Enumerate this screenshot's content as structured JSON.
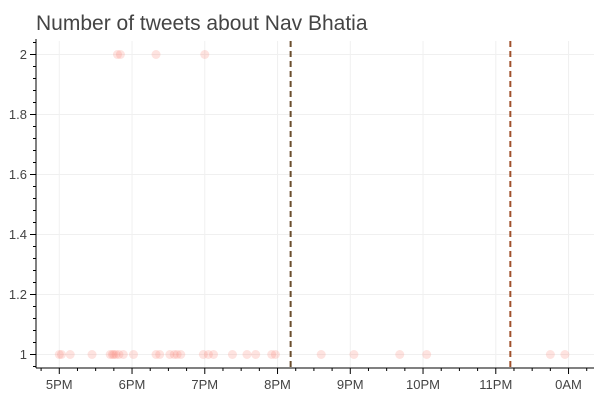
{
  "chart_data": {
    "type": "scatter",
    "title": "Number of tweets about Nav Bhatia",
    "xlabel": "",
    "ylabel": "",
    "x_unit": "hours after 5PM",
    "xlim": [
      -0.32,
      7.35
    ],
    "ylim": [
      0.955,
      2.045
    ],
    "x_ticks": [
      {
        "value": 0,
        "label": "5PM"
      },
      {
        "value": 1,
        "label": "6PM"
      },
      {
        "value": 2,
        "label": "7PM"
      },
      {
        "value": 3,
        "label": "8PM"
      },
      {
        "value": 4,
        "label": "9PM"
      },
      {
        "value": 5,
        "label": "10PM"
      },
      {
        "value": 6,
        "label": "11PM"
      },
      {
        "value": 7,
        "label": "0AM"
      }
    ],
    "y_ticks": [
      {
        "value": 1,
        "label": "1"
      },
      {
        "value": 1.2,
        "label": "1.2"
      },
      {
        "value": 1.4,
        "label": "1.4"
      },
      {
        "value": 1.6,
        "label": "1.6"
      },
      {
        "value": 1.8,
        "label": "1.8"
      },
      {
        "value": 2,
        "label": "2"
      }
    ],
    "grid": true,
    "point_color": "#fa8072",
    "point_alpha": 0.22,
    "series": [
      {
        "x": [
          0.0,
          0.03,
          0.15,
          0.45,
          0.7,
          0.73,
          0.75,
          0.78,
          0.82,
          0.88,
          1.02,
          1.33,
          1.38,
          1.52,
          1.58,
          1.62,
          1.67,
          1.98,
          2.05,
          2.12,
          2.38,
          2.58,
          2.7,
          2.92,
          2.97,
          3.6,
          4.05,
          4.68,
          5.05,
          6.75,
          6.95
        ],
        "y": [
          1,
          1,
          1,
          1,
          1,
          1,
          1,
          1,
          1,
          1,
          1,
          1,
          1,
          1,
          1,
          1,
          1,
          1,
          1,
          1,
          1,
          1,
          1,
          1,
          1,
          1,
          1,
          1,
          1,
          1,
          1
        ]
      },
      {
        "x": [
          0.8,
          0.84,
          1.33,
          2.0
        ],
        "y": [
          2,
          2,
          2,
          2
        ]
      }
    ],
    "vlines": [
      {
        "x": 3.18,
        "color": "#6b4e2e"
      },
      {
        "x": 6.2,
        "color": "#a0522d"
      }
    ]
  }
}
